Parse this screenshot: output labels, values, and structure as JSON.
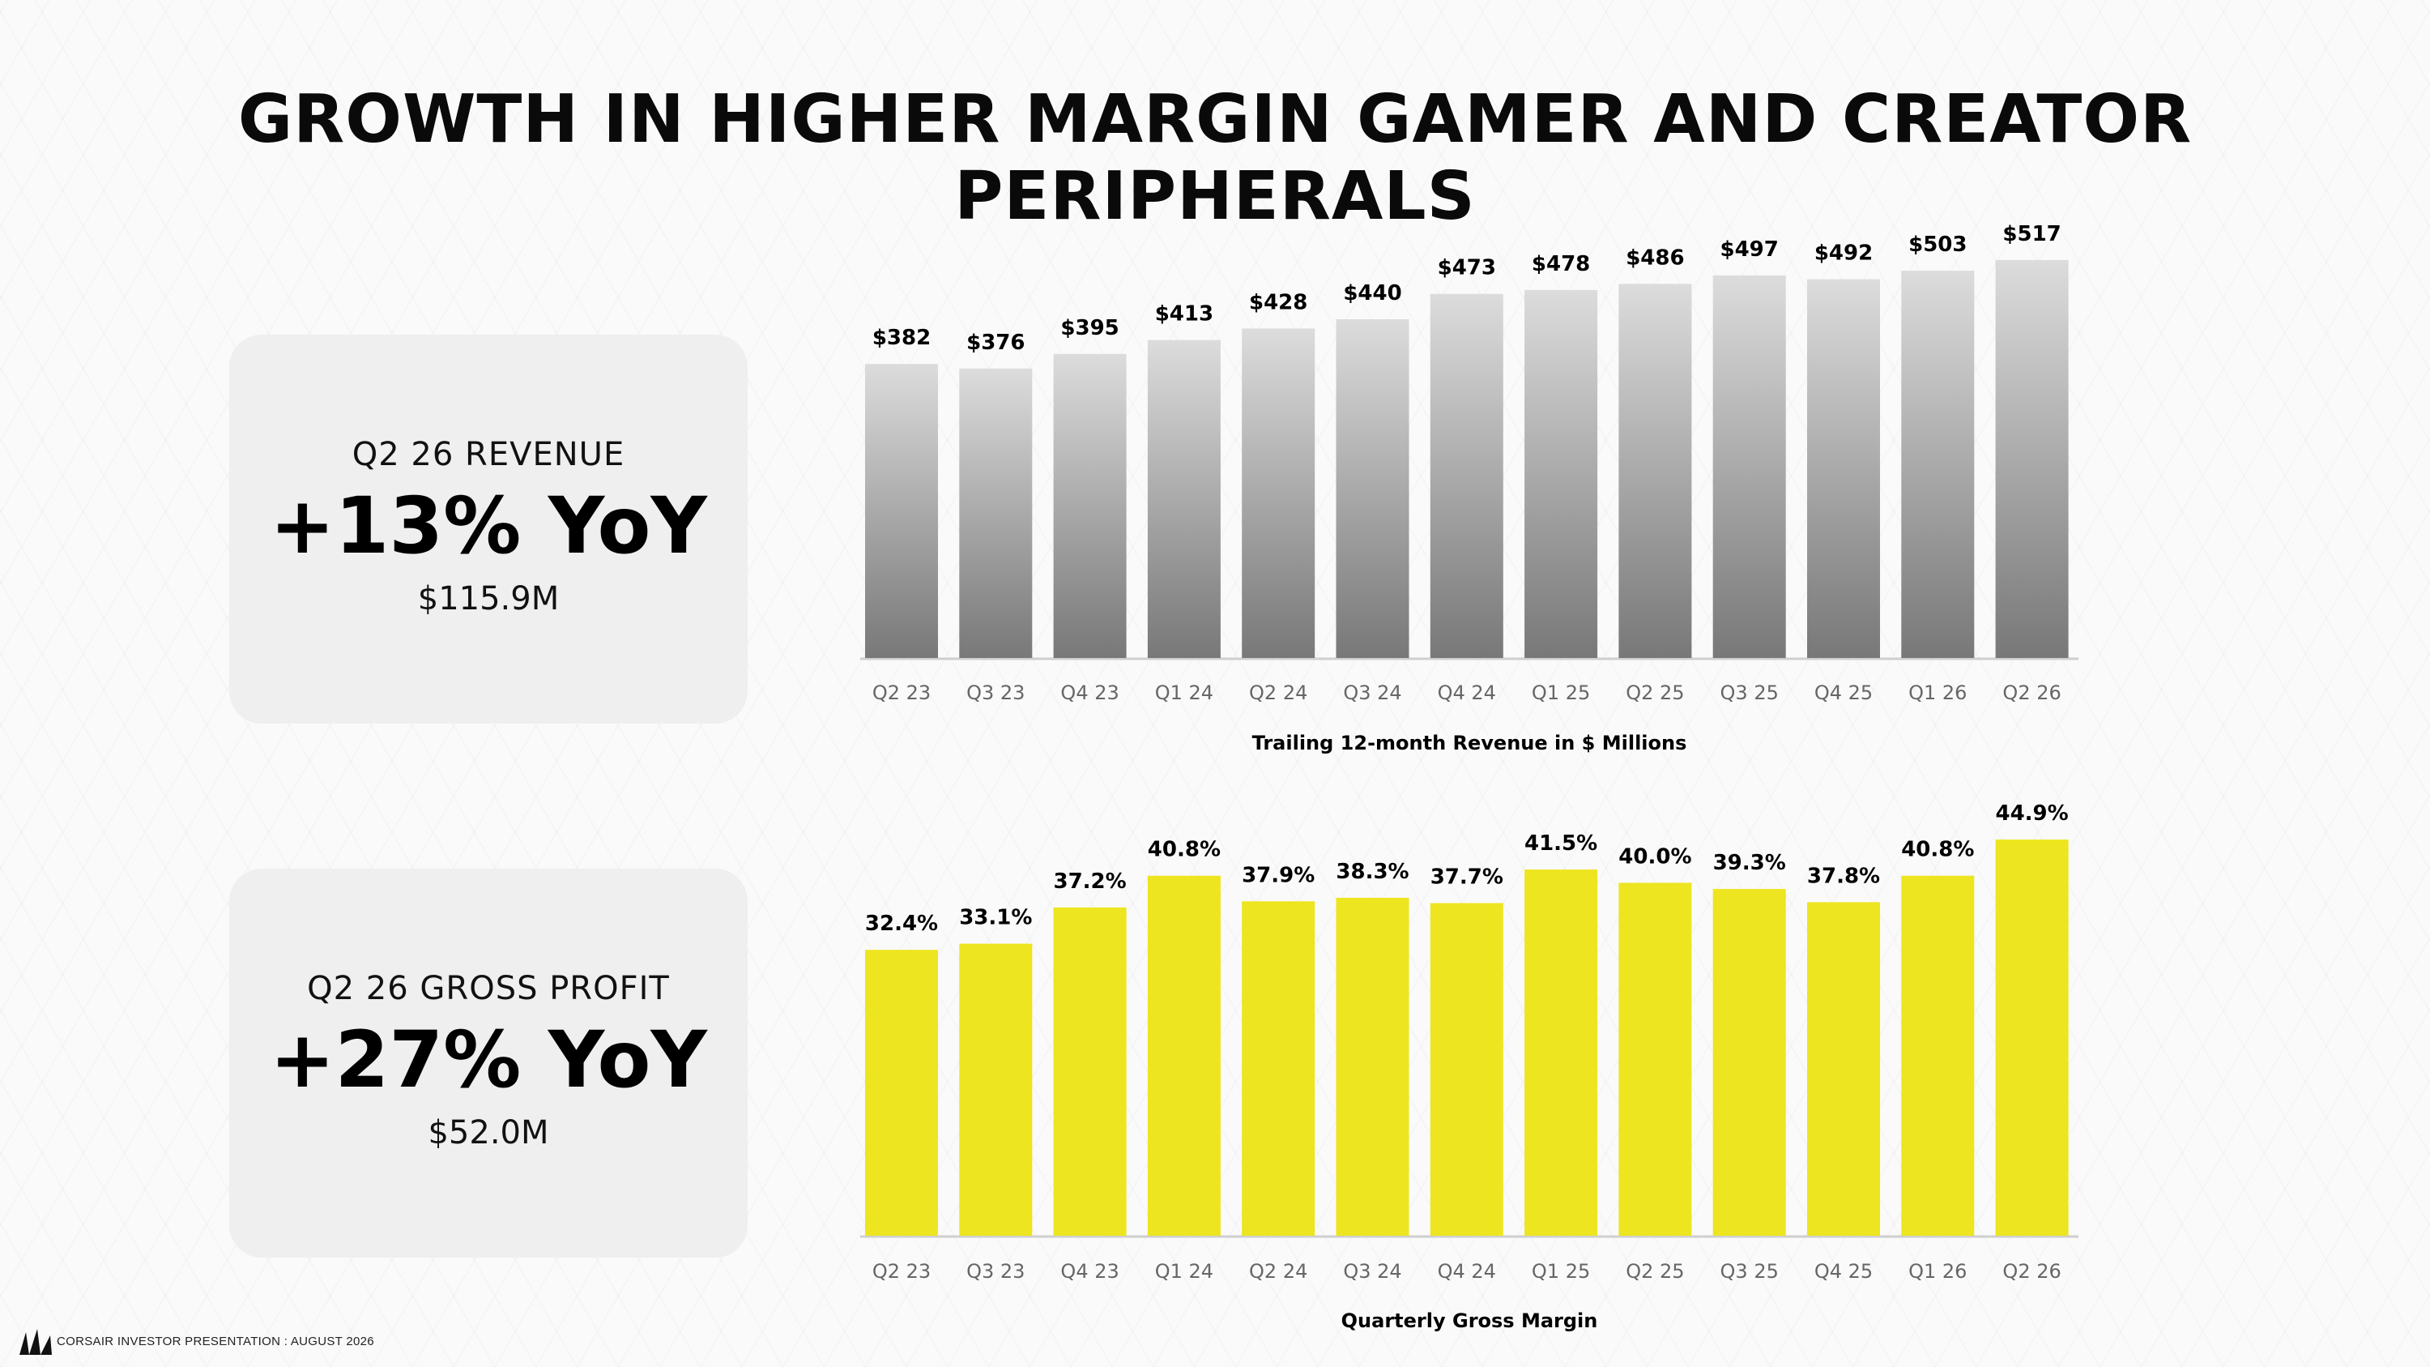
{
  "title": "GROWTH IN HIGHER MARGIN GAMER AND CREATOR PERIPHERALS",
  "kpis": {
    "revenue": {
      "label": "Q2 26 REVENUE",
      "big": "+13% YoY",
      "amount": "$115.9M"
    },
    "gross_profit": {
      "label": "Q2 26 GROSS PROFIT",
      "big": "+27% YoY",
      "amount": "$52.0M"
    }
  },
  "footer": {
    "text": "CORSAIR INVESTOR PRESENTATION : AUGUST 2026"
  },
  "icons": {
    "logo": "sail-logo-icon"
  },
  "colors": {
    "revenue_bar_top": "#d9d9d9",
    "revenue_bar_bottom": "#7a7a7a",
    "margin_bar": "#ede51f"
  },
  "chart_data": [
    {
      "type": "bar",
      "title": "Trailing 12-month Revenue in $ Millions",
      "categories": [
        "Q2 23",
        "Q3 23",
        "Q4 23",
        "Q1 24",
        "Q2 24",
        "Q3 24",
        "Q4 24",
        "Q1 25",
        "Q2 25",
        "Q3 25",
        "Q4 25",
        "Q1 26",
        "Q2 26"
      ],
      "values": [
        382,
        376,
        395,
        413,
        428,
        440,
        473,
        478,
        486,
        497,
        492,
        503,
        517
      ],
      "data_labels": [
        "$382",
        "$376",
        "$395",
        "$413",
        "$428",
        "$440",
        "$473",
        "$478",
        "$486",
        "$497",
        "$492",
        "$503",
        "$517"
      ],
      "ylim": [
        0,
        520
      ],
      "grid": false
    },
    {
      "type": "bar",
      "title": "Quarterly Gross Margin",
      "categories": [
        "Q2 23",
        "Q3 23",
        "Q4 23",
        "Q1 24",
        "Q2 24",
        "Q3 24",
        "Q4 24",
        "Q1 25",
        "Q2 25",
        "Q3 25",
        "Q4 25",
        "Q1 26",
        "Q2 26"
      ],
      "values": [
        32.4,
        33.1,
        37.2,
        40.8,
        37.9,
        38.3,
        37.7,
        41.5,
        40.0,
        39.3,
        37.8,
        40.8,
        44.9
      ],
      "data_labels": [
        "32.4%",
        "33.1%",
        "37.2%",
        "40.8%",
        "37.9%",
        "38.3%",
        "37.7%",
        "41.5%",
        "40.0%",
        "39.3%",
        "37.8%",
        "40.8%",
        "44.9%"
      ],
      "ylim": [
        0,
        45
      ],
      "grid": false
    }
  ]
}
